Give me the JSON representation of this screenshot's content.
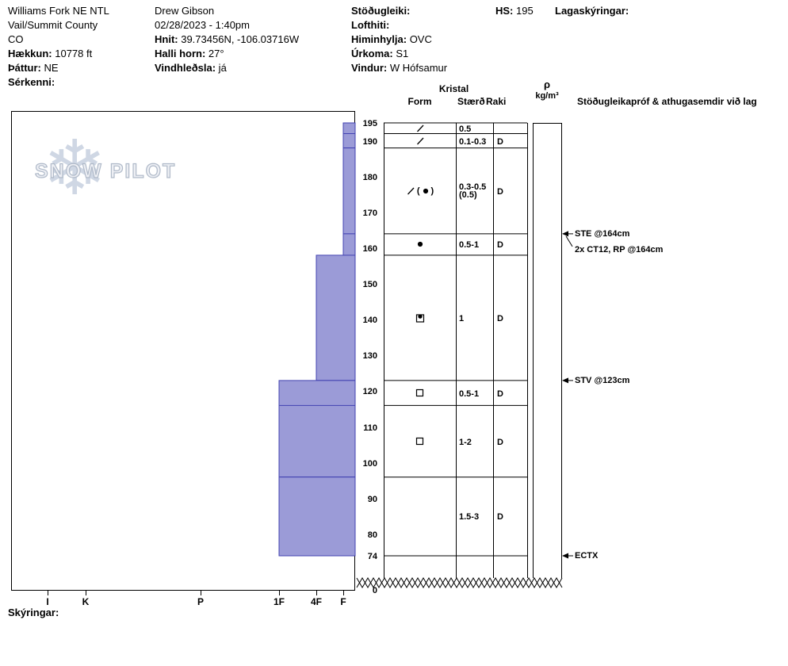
{
  "header": {
    "columns": [
      {
        "name": "location",
        "lines": [
          {
            "value": "Williams Fork NE NTL"
          },
          {
            "value": "Vail/Summit County"
          },
          {
            "value": "CO"
          },
          {
            "label": "Hækkun:",
            "value": "10778 ft"
          },
          {
            "label": "Þáttur:",
            "value": "NE"
          },
          {
            "label": "Sérkenni:",
            "value": ""
          }
        ]
      },
      {
        "name": "observer",
        "lines": [
          {
            "value": "Drew Gibson"
          },
          {
            "value": "02/28/2023 - 1:40pm"
          },
          {
            "label": "Hnit:",
            "value": "39.73456N, -106.03716W"
          },
          {
            "label": "Halli horn:",
            "value": "27°"
          },
          {
            "label": "Vindhleðsla:",
            "value": "já"
          }
        ]
      },
      {
        "name": "conditions",
        "lines": [
          {
            "label": "Stöðugleiki:",
            "value": ""
          },
          {
            "label": "Lofthiti:",
            "value": ""
          },
          {
            "label": "Himinhylja:",
            "value": "OVC"
          },
          {
            "label": "Úrkoma:",
            "value": "S1"
          },
          {
            "label": "Vindur:",
            "value": "W Hófsamur"
          }
        ]
      },
      {
        "name": "snow-height",
        "lines": [
          {
            "label": "HS:",
            "value": "195"
          }
        ]
      },
      {
        "name": "layer-notes",
        "lines": [
          {
            "label": "Lagaskýringar:",
            "value": ""
          }
        ]
      }
    ]
  },
  "watermark": {
    "text": "SNOW PILOT",
    "snowflake": "❄"
  },
  "table": {
    "group_header": "Kristal",
    "col_form": "Form",
    "col_size": "Stærð",
    "col_moisture": "Raki",
    "density_symbol": "ρ",
    "density_units": "kg/m³",
    "comments_header": "Stöðugleikapróf & athugasemdir við lag"
  },
  "footer": {
    "legend_label": "Skýringar:"
  },
  "colors": {
    "bar_fill": "#9b9bd7",
    "bar_border": "#4343b2",
    "watermark_flake": "#c7d1e0",
    "watermark_text": "#edeff4",
    "line": "#000000"
  },
  "icons": {
    "DF": "slash",
    "RG": "filled-circle",
    "FC": "open-square",
    "FCxr": "square-with-dot",
    "DF(RG)": "slash-paren-filled-circle"
  },
  "chart_data": {
    "type": "snow-profile-bar",
    "title": "Williams Fork NE NTL snow pit hardness profile",
    "depth_unit": "cm",
    "total_height_cm": 195,
    "pit_bottom_cm": 74,
    "depth_ticks": [
      195,
      190,
      180,
      170,
      160,
      150,
      140,
      130,
      120,
      110,
      100,
      90,
      80,
      74
    ],
    "ground_label": "0",
    "hardness_ticks": [
      "I",
      "K",
      "P",
      "1F",
      "4F",
      "F"
    ],
    "layers": [
      {
        "top_cm": 195,
        "bottom_cm": 192,
        "hardness": "F",
        "grain_form": "DF",
        "grain_size_mm": "0.5",
        "moisture": ""
      },
      {
        "top_cm": 192,
        "bottom_cm": 188,
        "hardness": "F",
        "grain_form": "DF",
        "grain_size_mm": "0.1-0.3",
        "moisture": "D"
      },
      {
        "top_cm": 188,
        "bottom_cm": 164,
        "hardness": "F",
        "grain_form": "DF(RG)",
        "grain_size_mm": "0.3-0.5",
        "grain_size2": "(0.5)",
        "moisture": "D"
      },
      {
        "top_cm": 164,
        "bottom_cm": 158,
        "hardness": "F",
        "grain_form": "RG",
        "grain_size_mm": "0.5-1",
        "moisture": "D"
      },
      {
        "top_cm": 158,
        "bottom_cm": 123,
        "hardness": "4F",
        "grain_form": "FCxr",
        "grain_size_mm": "1",
        "moisture": "D"
      },
      {
        "top_cm": 123,
        "bottom_cm": 116,
        "hardness": "1F",
        "grain_form": "FC",
        "grain_size_mm": "0.5-1",
        "moisture": "D"
      },
      {
        "top_cm": 116,
        "bottom_cm": 96,
        "hardness": "1F",
        "grain_form": "FC",
        "grain_size_mm": "1-2",
        "moisture": "D"
      },
      {
        "top_cm": 96,
        "bottom_cm": 74,
        "hardness": "1F",
        "grain_form": "",
        "grain_size_mm": "1.5-3",
        "moisture": "D"
      }
    ],
    "stability_tests": [
      {
        "label": "STE @164cm",
        "depth_cm": 164
      },
      {
        "label": "2x CT12, RP @164cm",
        "depth_cm": 164
      },
      {
        "label": "STV @123cm",
        "depth_cm": 123
      },
      {
        "label": "ECTX",
        "depth_cm": 74
      }
    ]
  }
}
